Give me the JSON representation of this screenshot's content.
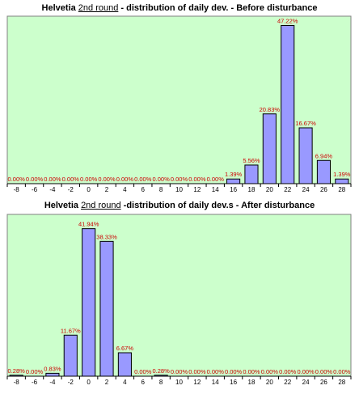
{
  "charts": [
    {
      "title_a": "Helvetia ",
      "title_u": "2nd round",
      "title_b": " - distribution of daily dev. - Before disturbance"
    },
    {
      "title_a": "Helvetia ",
      "title_u": "2nd round",
      "title_b": "  -distribution of daily dev.s - After disturbance"
    }
  ],
  "chart_data": [
    {
      "type": "bar",
      "title": "Helvetia 2nd round - distribution of daily dev. - Before disturbance",
      "categories": [
        "-8",
        "-6",
        "-4",
        "-2",
        "0",
        "2",
        "4",
        "6",
        "8",
        "10",
        "12",
        "14",
        "16",
        "18",
        "20",
        "22",
        "24",
        "26",
        "28"
      ],
      "values": [
        0,
        0,
        0,
        0,
        0,
        0,
        0,
        0,
        0,
        0,
        0,
        0,
        1.39,
        5.56,
        20.83,
        47.22,
        16.67,
        6.94,
        1.39
      ],
      "data_labels": [
        "0.00%",
        "0.00%",
        "0.00%",
        "0.00%",
        "0.00%",
        "0.00%",
        "0.00%",
        "0.00%",
        "0.00%",
        "0.00%",
        "0.00%",
        "0.00%",
        "1.39%",
        "5.56%",
        "20.83%",
        "47.22%",
        "16.67%",
        "6.94%",
        "1.39%"
      ],
      "ylim": [
        0,
        50
      ],
      "grid": false,
      "colors": {
        "plot_bg": "#ccffcc",
        "bar_fill": "#9999ff",
        "label": "#cc0000"
      }
    },
    {
      "type": "bar",
      "title": "Helvetia 2nd round -distribution of daily dev.s - After disturbance",
      "categories": [
        "-8",
        "-6",
        "-4",
        "-2",
        "0",
        "2",
        "4",
        "6",
        "8",
        "10",
        "12",
        "14",
        "16",
        "18",
        "20",
        "22",
        "24",
        "26",
        "28"
      ],
      "values": [
        0.28,
        0,
        0.83,
        11.67,
        41.94,
        38.33,
        6.67,
        0,
        0.28,
        0,
        0,
        0,
        0,
        0,
        0,
        0,
        0,
        0,
        0
      ],
      "data_labels": [
        "0.28%",
        "0.00%",
        "0.83%",
        "11.67%",
        "41.94%",
        "38.33%",
        "6.67%",
        "0.00%",
        "0.28%",
        "0.00%",
        "0.00%",
        "0.00%",
        "0.00%",
        "0.00%",
        "0.00%",
        "0.00%",
        "0.00%",
        "0.00%",
        "0.00%"
      ],
      "ylim": [
        0,
        46
      ],
      "grid": false,
      "colors": {
        "plot_bg": "#ccffcc",
        "bar_fill": "#9999ff",
        "label": "#cc0000"
      }
    }
  ]
}
